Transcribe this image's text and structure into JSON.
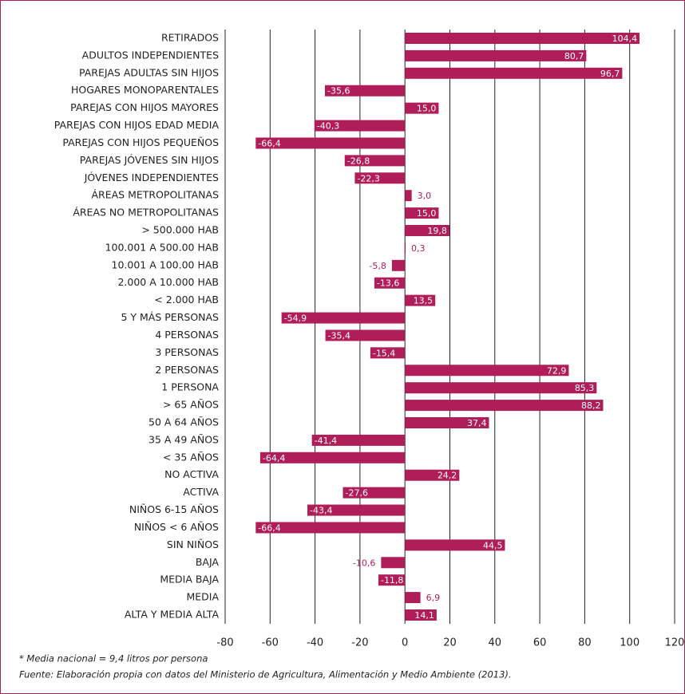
{
  "chart_data": {
    "type": "hbar",
    "categories": [
      "RETIRADOS",
      "ADULTOS INDEPENDIENTES",
      "PAREJAS ADULTAS SIN HIJOS",
      "HOGARES MONOPARENTALES",
      "PAREJAS CON HIJOS MAYORES",
      "PAREJAS CON HIJOS EDAD MEDIA",
      "PAREJAS CON HIJOS PEQUEÑOS",
      "PAREJAS JÓVENES SIN HIJOS",
      "JÓVENES INDEPENDIENTES",
      "ÁREAS METROPOLITANAS",
      "ÁREAS NO METROPOLITANAS",
      "> 500.000 HAB",
      "100.001 A 500.00 HAB",
      "10.001 A 100.00 HAB",
      "2.000 A 10.000 HAB",
      "< 2.000 HAB",
      "5 Y MÁS PERSONAS",
      "4 PERSONAS",
      "3 PERSONAS",
      "2 PERSONAS",
      "1 PERSONA",
      "> 65 AÑOS",
      "50 A 64 AÑOS",
      "35 A 49 AÑOS",
      "< 35 AÑOS",
      "NO ACTIVA",
      "ACTIVA",
      "NIÑOS 6-15 AÑOS",
      "NIÑOS < 6 AÑOS",
      "SIN NIÑOS",
      "BAJA",
      "MEDIA BAJA",
      "MEDIA",
      "ALTA Y MEDIA ALTA"
    ],
    "values": [
      104.4,
      80.7,
      96.7,
      -35.6,
      15.0,
      -40.3,
      -66.4,
      -26.8,
      -22.3,
      3.0,
      15.0,
      19.8,
      0.3,
      -5.8,
      -13.6,
      13.5,
      -54.9,
      -35.4,
      -15.4,
      72.9,
      85.3,
      88.2,
      37.4,
      -41.4,
      -64.4,
      24.2,
      -27.6,
      -43.4,
      -66.4,
      44.5,
      -10.6,
      -11.8,
      6.9,
      14.1
    ],
    "value_labels": [
      "104,4",
      "80,7",
      "96,7",
      "-35,6",
      "15,0",
      "-40,3",
      "-66,4",
      "-26,8",
      "-22,3",
      "3,0",
      "15,0",
      "19,8",
      "0,3",
      "-5,8",
      "-13,6",
      "13,5",
      "-54,9",
      "-35,4",
      "-15,4",
      "72,9",
      "85,3",
      "88,2",
      "37,4",
      "-41,4",
      "-64,4",
      "24,2",
      "-27,6",
      "-43,4",
      "-66,4",
      "44,5",
      "-10,6",
      "-11,8",
      "6,9",
      "14,1"
    ],
    "color": "#b01e5a",
    "xlim": [
      -80,
      120
    ],
    "xticks": [
      -80,
      -60,
      -40,
      -20,
      0,
      20,
      40,
      60,
      80,
      100,
      120
    ],
    "grid": true,
    "notes": [
      "* Media nacional = 9,4 litros por persona",
      "Fuente: Elaboración propia con datos del Ministerio de Agricultura, Alimentación y Medio Ambiente (2013)."
    ]
  }
}
